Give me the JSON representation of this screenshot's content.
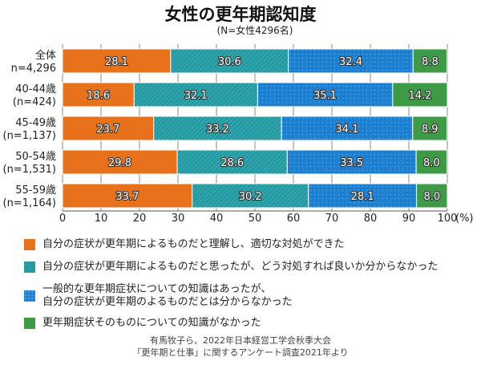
{
  "chart_data": {
    "type": "bar",
    "orientation": "horizontal",
    "stacked": true,
    "title": "女性の更年期認知度",
    "subtitle": "(N=女性4296名)",
    "categories": [
      [
        "全体",
        "n=4,296"
      ],
      [
        "40-44歳",
        "(n=424)"
      ],
      [
        "45-49歳",
        "(n=1,137)"
      ],
      [
        "50-54歳",
        "(n=1,531)"
      ],
      [
        "55-59歳",
        "(n=1,164)"
      ]
    ],
    "series": [
      {
        "name": "自分の症状が更年期によるものだと理解し、適切な対処ができた",
        "color": "#e8721c",
        "pattern": "solid",
        "values": [
          28.1,
          18.6,
          23.7,
          29.8,
          33.7
        ]
      },
      {
        "name": "自分の症状が更年期によるものだと思ったが、どう対処すれば良いか分からなかった",
        "color": "#2ea5ad",
        "pattern": "hatch",
        "values": [
          30.6,
          32.1,
          33.2,
          28.6,
          30.2
        ]
      },
      {
        "name": "一般的な更年期症状についての知識はあったが、\n自分の症状が更年期のよるものだとは分からなかった",
        "color": "#1c7fd0",
        "pattern": "dots",
        "values": [
          32.4,
          35.1,
          34.1,
          33.5,
          28.1
        ]
      },
      {
        "name": "更年期症状そのものについての知識がなかった",
        "color": "#3e9a46",
        "pattern": "solid",
        "values": [
          8.8,
          14.2,
          8.9,
          8.0,
          8.0
        ]
      }
    ],
    "xlim": [
      0,
      100
    ],
    "xticks": [
      "0",
      "10",
      "20",
      "30",
      "40",
      "50",
      "60",
      "70",
      "80",
      "90",
      "100"
    ],
    "xunit": "(%)",
    "grid": true,
    "legend": "bottom"
  },
  "source": [
    "有馬牧子ら、2022年日本経営工学会秋季大会",
    "「更年期と仕事」に関するアンケート調査2021年より"
  ]
}
